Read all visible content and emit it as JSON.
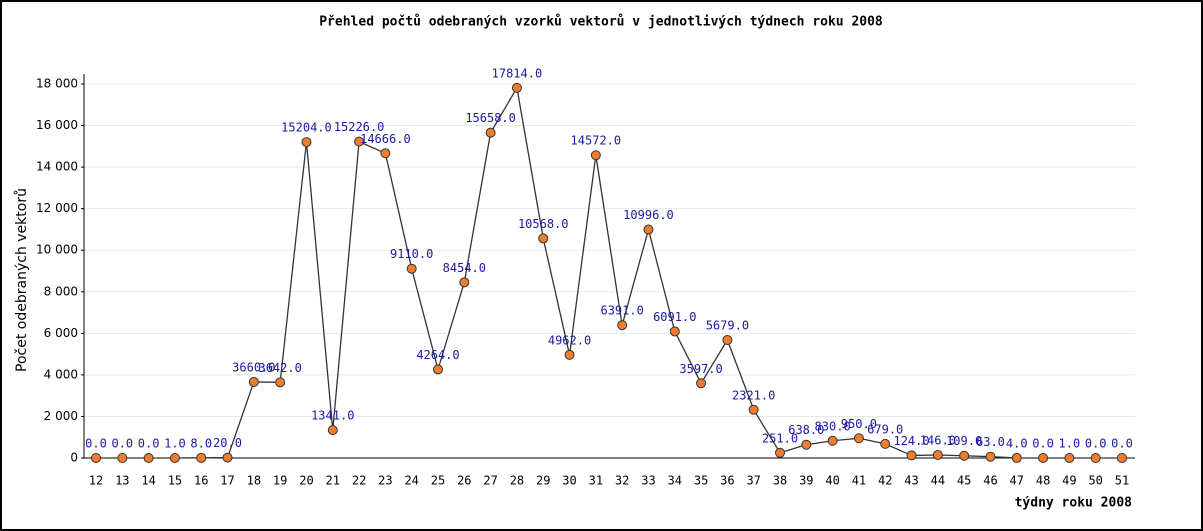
{
  "chart_data": {
    "type": "line",
    "title": "Přehled počtů odebraných vzorků vektorů v jednotlivých týdnech roku 2008",
    "x_label": "týdny roku 2008",
    "y_label": "Počet odebraných vektorů",
    "categories": [
      "12",
      "13",
      "14",
      "15",
      "16",
      "17",
      "18",
      "19",
      "20",
      "21",
      "22",
      "23",
      "24",
      "25",
      "26",
      "27",
      "28",
      "29",
      "30",
      "31",
      "32",
      "33",
      "34",
      "35",
      "36",
      "37",
      "38",
      "39",
      "40",
      "41",
      "42",
      "43",
      "44",
      "45",
      "46",
      "47",
      "48",
      "49",
      "50",
      "51"
    ],
    "series": [
      {
        "name": "Počet odebraných vektorů",
        "color": "#f07c30",
        "values": [
          0,
          0,
          0,
          1,
          8,
          20,
          3660,
          3642,
          15204,
          1341,
          15226,
          14666,
          9110,
          4264,
          8454,
          15658,
          17814,
          10568,
          4962,
          14572,
          6391,
          10996,
          6091,
          3597,
          5679,
          2321,
          251,
          638,
          830,
          950,
          679,
          124,
          146,
          109,
          63,
          4,
          0,
          1,
          0,
          0
        ],
        "value_labels": [
          "0.0",
          "0.0",
          "0.0",
          "1.0",
          "8.0",
          "20.0",
          "3660.0",
          "3642.0",
          "15204.0",
          "1341.0",
          "15226.0",
          "14666.0",
          "9110.0",
          "4264.0",
          "8454.0",
          "15658.0",
          "17814.0",
          "10568.0",
          "4962.0",
          "14572.0",
          "6391.0",
          "10996.0",
          "6091.0",
          "3597.0",
          "5679.0",
          "2321.0",
          "251.0",
          "638.0",
          "830.0",
          "950.0",
          "679.0",
          "124.0",
          "146.0",
          "109.0",
          "63.0",
          "4.0",
          "0.0",
          "1.0",
          "0.0",
          "0.0"
        ]
      }
    ],
    "ylim": [
      0,
      18000
    ],
    "yticks": [
      0,
      {
        "value": 2000,
        "label": "2 000"
      },
      {
        "value": 4000,
        "label": "4 000"
      },
      {
        "value": 6000,
        "label": "6 000"
      },
      {
        "value": 8000,
        "label": "8 000"
      },
      {
        "value": 10000,
        "label": "10 000"
      },
      {
        "value": 12000,
        "label": "12 000"
      },
      {
        "value": 14000,
        "label": "14 000"
      },
      {
        "value": 16000,
        "label": "16 000"
      },
      {
        "value": 18000,
        "label": "18 000"
      }
    ],
    "grid": true
  }
}
